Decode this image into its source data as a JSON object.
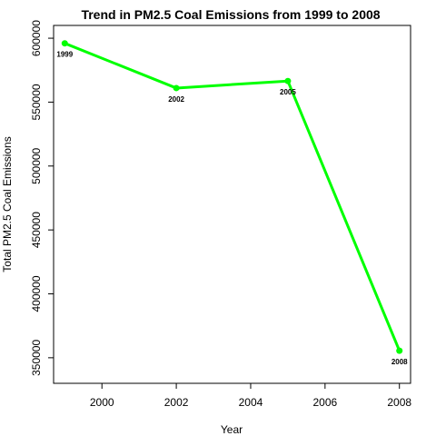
{
  "chart_data": {
    "type": "line",
    "title": "Trend in PM2.5 Coal Emissions from 1999 to 2008",
    "xlabel": "Year",
    "ylabel": "Total PM2.5 Coal Emissions",
    "x": [
      1999,
      2002,
      2005,
      2008
    ],
    "series": [
      {
        "values": [
          596000,
          561000,
          566500,
          355500
        ]
      }
    ],
    "point_labels": [
      "1999",
      "2002",
      "2005",
      "2008"
    ],
    "xlim": [
      1998.7,
      2008.3
    ],
    "ylim": [
      330000,
      610000
    ],
    "x_ticks": [
      2000,
      2002,
      2004,
      2006,
      2008
    ],
    "x_tick_labels": [
      "2000",
      "2002",
      "2004",
      "2006",
      "2008"
    ],
    "y_ticks": [
      350000,
      400000,
      450000,
      500000,
      550000,
      600000
    ],
    "y_tick_labels": [
      "350000",
      "400000",
      "450000",
      "500000",
      "550000",
      "600000"
    ],
    "grid": false,
    "line_color": "#00ff00",
    "point_color": "#00ff00"
  }
}
